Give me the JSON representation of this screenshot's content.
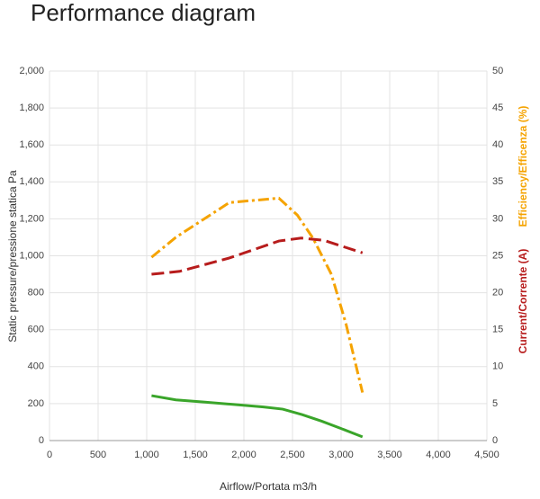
{
  "chart_data": {
    "type": "line",
    "title": "Performance diagram",
    "xlabel": "Airflow/Portata m3/h",
    "ylabel": "Static pressure/pressione statica Pa",
    "xlim": [
      0,
      4500
    ],
    "xticks": [
      0,
      500,
      {
        "value": 1000,
        "label": "1,000"
      },
      {
        "value": 1500,
        "label": "1,500"
      },
      {
        "value": 2000,
        "label": "2,000"
      },
      {
        "value": 2500,
        "label": "2,500"
      },
      {
        "value": 3000,
        "label": "3,000"
      },
      {
        "value": 3500,
        "label": "3,500"
      },
      {
        "value": 4000,
        "label": "4,000"
      },
      {
        "value": 4500,
        "label": "4,500"
      }
    ],
    "ylim": [
      0,
      2000
    ],
    "yticks": [
      0,
      200,
      400,
      600,
      800,
      {
        "value": 1000,
        "label": "1,000"
      },
      {
        "value": 1200,
        "label": "1,200"
      },
      {
        "value": 1400,
        "label": "1,400"
      },
      {
        "value": 1600,
        "label": "1,600"
      },
      {
        "value": 1800,
        "label": "1,800"
      },
      {
        "value": 2000,
        "label": "2,000"
      }
    ],
    "y2lim": [
      0,
      50
    ],
    "y2ticks": [
      0,
      5,
      10,
      15,
      20,
      25,
      30,
      35,
      40,
      45,
      50
    ],
    "grid": true,
    "series": [
      {
        "color": "#3aa52a",
        "dash": "solid",
        "x": [
          1050,
          1300,
          1600,
          1900,
          2200,
          2400,
          2600,
          2800,
          3000,
          3220
        ],
        "values": [
          243,
          220,
          208,
          195,
          182,
          170,
          140,
          105,
          65,
          20
        ]
      },
      {
        "name": "Efficiency/Efficenza (%)",
        "color": "#f5a300",
        "dash": "dashdot",
        "axis": "y2",
        "x": [
          1050,
          1300,
          1850,
          2360,
          2550,
          2710,
          2900,
          3050,
          3220
        ],
        "values": [
          24.8,
          27.5,
          32.2,
          32.8,
          30.5,
          27.4,
          22.5,
          15.8,
          6.5
        ]
      },
      {
        "name": "Current/Corrente (A)",
        "color": "#b71c1c",
        "dash": "dashed",
        "axis": "y2",
        "x": [
          1050,
          1340,
          1850,
          2360,
          2590,
          2820,
          3220
        ],
        "values": [
          22.5,
          22.9,
          24.7,
          27.0,
          27.4,
          27.1,
          25.4
        ]
      }
    ]
  }
}
